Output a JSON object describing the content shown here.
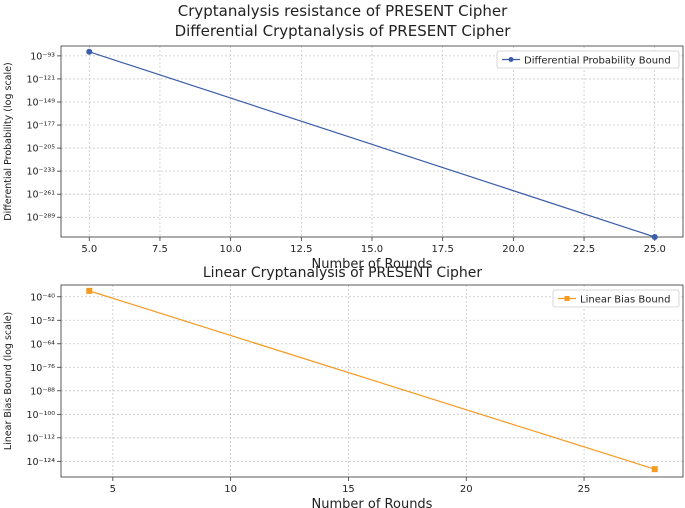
{
  "suptitle": "Cryptanalysis resistance of PRESENT Cipher",
  "chart_data": [
    {
      "type": "line",
      "title": "Differential Cryptanalysis of PRESENT Cipher",
      "xlabel": "Number of Rounds",
      "ylabel": "Differential Probability (log scale)",
      "y_scale": "log",
      "grid": true,
      "legend_position": "top-right",
      "xlim": [
        4.0,
        26.0
      ],
      "x_ticks": [
        "5.0",
        "7.5",
        "10.0",
        "12.5",
        "15.0",
        "17.5",
        "20.0",
        "22.5",
        "25.0"
      ],
      "x_tick_values": [
        5,
        7.5,
        10,
        12.5,
        15,
        17.5,
        20,
        22.5,
        25
      ],
      "ylim_exponent": [
        -313,
        -81
      ],
      "y_ticks": [
        "10⁻⁹³",
        "10⁻¹²¹",
        "10⁻¹⁴⁹",
        "10⁻¹⁷⁷",
        "10⁻²⁰⁵",
        "10⁻²³³",
        "10⁻²⁶¹",
        "10⁻²⁸⁹"
      ],
      "y_tick_exponents": [
        -93,
        -121,
        -149,
        -177,
        -205,
        -233,
        -261,
        -289
      ],
      "series": [
        {
          "name": "Differential Probability Bound",
          "color": "#3b5ca8",
          "marker": "circle",
          "x": [
            5,
            25
          ],
          "y_exponent": [
            -88,
            -313
          ]
        }
      ]
    },
    {
      "type": "line",
      "title": "Linear Cryptanalysis of PRESENT Cipher",
      "xlabel": "Number of Rounds",
      "ylabel": "Linear Bias Bound (log scale)",
      "y_scale": "log",
      "grid": true,
      "legend_position": "top-right",
      "xlim": [
        2.8,
        29.2
      ],
      "x_ticks": [
        "5",
        "10",
        "15",
        "20",
        "25"
      ],
      "x_tick_values": [
        5,
        10,
        15,
        20,
        25
      ],
      "ylim_exponent": [
        -132,
        -34
      ],
      "y_ticks": [
        "10⁻⁴⁰",
        "10⁻⁵²",
        "10⁻⁶⁴",
        "10⁻⁷⁶",
        "10⁻⁸⁸",
        "10⁻¹⁰⁰",
        "10⁻¹¹²",
        "10⁻¹²⁴"
      ],
      "y_tick_exponents": [
        -40,
        -52,
        -64,
        -76,
        -88,
        -100,
        -112,
        -124
      ],
      "series": [
        {
          "name": "Linear Bias Bound",
          "color": "#f59a23",
          "marker": "square",
          "x": [
            4,
            28
          ],
          "y_exponent": [
            -37,
            -128
          ]
        }
      ]
    }
  ]
}
